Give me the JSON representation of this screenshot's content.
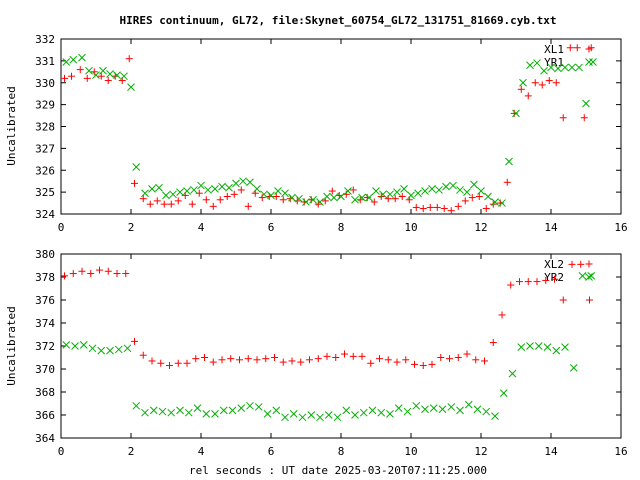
{
  "figure": {
    "title": "HIRES continuum, GL72, file:Skynet_60754_GL72_131751_81669.cyb.txt",
    "xlabel": "rel seconds : UT date 2025-03-20T07:11:25.000"
  },
  "chart_data": [
    {
      "type": "scatter",
      "ylabel": "Uncalibrated",
      "xlim": [
        0,
        16
      ],
      "ylim": [
        324,
        332
      ],
      "xticks": [
        0,
        2,
        4,
        6,
        8,
        10,
        12,
        14,
        16
      ],
      "yticks": [
        324,
        325,
        326,
        327,
        328,
        329,
        330,
        331,
        332
      ],
      "legend": "top-right",
      "series": [
        {
          "name": "XL1",
          "marker": "plus",
          "color": "#ff0000",
          "x": [
            0.1,
            0.3,
            0.55,
            0.75,
            0.95,
            1.15,
            1.35,
            1.55,
            1.75,
            1.95,
            2.1,
            2.35,
            2.55,
            2.75,
            2.95,
            3.15,
            3.35,
            3.55,
            3.75,
            3.95,
            4.15,
            4.35,
            4.55,
            4.75,
            4.95,
            5.15,
            5.35,
            5.55,
            5.75,
            5.95,
            6.15,
            6.35,
            6.55,
            6.75,
            6.95,
            7.15,
            7.35,
            7.55,
            7.75,
            7.95,
            8.15,
            8.35,
            8.55,
            8.75,
            8.95,
            9.15,
            9.35,
            9.55,
            9.75,
            9.95,
            10.15,
            10.35,
            10.55,
            10.75,
            10.95,
            11.15,
            11.35,
            11.55,
            11.75,
            11.95,
            12.15,
            12.35,
            12.55,
            12.75,
            12.95,
            13.15,
            13.35,
            13.55,
            13.75,
            13.95,
            14.15,
            14.35,
            14.55,
            14.75,
            14.95,
            15.15
          ],
          "y": [
            330.2,
            330.3,
            330.6,
            330.2,
            330.5,
            330.3,
            330.1,
            330.3,
            330.1,
            331.1,
            325.4,
            324.7,
            324.45,
            324.6,
            324.45,
            324.45,
            324.6,
            324.85,
            324.45,
            324.95,
            324.65,
            324.35,
            324.65,
            324.8,
            324.9,
            325.1,
            324.35,
            324.95,
            324.75,
            324.8,
            324.8,
            324.65,
            324.7,
            324.6,
            324.55,
            324.65,
            324.45,
            324.6,
            325.05,
            324.85,
            324.9,
            325.1,
            324.65,
            324.75,
            324.55,
            324.8,
            324.7,
            324.7,
            324.8,
            324.65,
            324.3,
            324.25,
            324.3,
            324.3,
            324.25,
            324.15,
            324.35,
            324.6,
            324.75,
            324.8,
            324.25,
            324.45,
            324.5,
            325.45,
            328.6,
            329.7,
            329.4,
            330.0,
            329.9,
            330.1,
            330.0,
            328.4,
            331.6,
            331.6,
            328.4,
            331.6
          ]
        },
        {
          "name": "YR1",
          "marker": "cross",
          "color": "#00b000",
          "x": [
            0.15,
            0.35,
            0.6,
            0.8,
            1.0,
            1.2,
            1.4,
            1.6,
            1.8,
            2.0,
            2.15,
            2.4,
            2.6,
            2.8,
            3.0,
            3.2,
            3.4,
            3.6,
            3.8,
            4.0,
            4.2,
            4.4,
            4.6,
            4.8,
            5.0,
            5.2,
            5.4,
            5.6,
            5.8,
            6.0,
            6.2,
            6.4,
            6.6,
            6.8,
            7.0,
            7.2,
            7.4,
            7.6,
            7.8,
            8.0,
            8.2,
            8.4,
            8.6,
            8.8,
            9.0,
            9.2,
            9.4,
            9.6,
            9.8,
            10.0,
            10.2,
            10.4,
            10.6,
            10.8,
            11.0,
            11.2,
            11.4,
            11.6,
            11.8,
            12.0,
            12.2,
            12.4,
            12.6,
            12.8,
            13.0,
            13.2,
            13.4,
            13.6,
            13.8,
            14.0,
            14.2,
            14.4,
            14.6,
            14.8,
            15.0,
            15.2
          ],
          "y": [
            330.95,
            331.05,
            331.15,
            330.55,
            330.35,
            330.55,
            330.4,
            330.35,
            330.3,
            329.8,
            326.15,
            324.95,
            325.15,
            325.2,
            324.85,
            324.9,
            325.0,
            325.05,
            325.1,
            325.3,
            325.1,
            325.15,
            325.25,
            325.2,
            325.4,
            325.5,
            325.45,
            325.15,
            324.9,
            324.85,
            325.05,
            324.95,
            324.75,
            324.7,
            324.55,
            324.65,
            324.55,
            324.8,
            324.75,
            324.8,
            325.05,
            324.65,
            324.75,
            324.75,
            325.05,
            324.9,
            324.9,
            325.0,
            325.15,
            324.85,
            324.95,
            325.05,
            325.15,
            325.1,
            325.25,
            325.3,
            325.1,
            325.0,
            325.35,
            325.05,
            324.8,
            324.55,
            324.5,
            326.4,
            328.6,
            330.0,
            330.8,
            330.9,
            330.55,
            330.7,
            330.65,
            330.7,
            330.7,
            330.7,
            329.05,
            330.95
          ]
        }
      ]
    },
    {
      "type": "scatter",
      "ylabel": "Uncalibrated",
      "xlim": [
        0,
        16
      ],
      "ylim": [
        364,
        380
      ],
      "xticks": [
        0,
        2,
        4,
        6,
        8,
        10,
        12,
        14,
        16
      ],
      "yticks": [
        364,
        366,
        368,
        370,
        372,
        374,
        376,
        378,
        380
      ],
      "legend": "top-right",
      "series": [
        {
          "name": "XL2",
          "marker": "plus",
          "color": "#ff0000",
          "x": [
            0.1,
            0.35,
            0.6,
            0.85,
            1.1,
            1.35,
            1.6,
            1.85,
            2.1,
            2.35,
            2.6,
            2.85,
            3.1,
            3.35,
            3.6,
            3.85,
            4.1,
            4.35,
            4.6,
            4.85,
            5.1,
            5.35,
            5.6,
            5.85,
            6.1,
            6.35,
            6.6,
            6.85,
            7.1,
            7.35,
            7.6,
            7.85,
            8.1,
            8.35,
            8.6,
            8.85,
            9.1,
            9.35,
            9.6,
            9.85,
            10.1,
            10.35,
            10.6,
            10.85,
            11.1,
            11.35,
            11.6,
            11.85,
            12.1,
            12.35,
            12.6,
            12.85,
            13.1,
            13.35,
            13.6,
            13.85,
            14.1,
            14.35,
            14.6,
            14.85,
            15.1
          ],
          "y": [
            378.1,
            378.3,
            378.5,
            378.3,
            378.6,
            378.5,
            378.3,
            378.3,
            372.4,
            371.2,
            370.7,
            370.5,
            370.3,
            370.5,
            370.5,
            370.9,
            371.0,
            370.6,
            370.8,
            370.9,
            370.8,
            370.9,
            370.8,
            370.9,
            371.0,
            370.6,
            370.7,
            370.6,
            370.8,
            370.9,
            371.1,
            371.0,
            371.3,
            371.1,
            371.1,
            370.5,
            370.9,
            370.8,
            370.6,
            370.8,
            370.4,
            370.3,
            370.4,
            371.0,
            370.9,
            371.0,
            371.3,
            370.8,
            370.7,
            372.3,
            374.7,
            377.3,
            377.6,
            377.6,
            377.6,
            377.7,
            377.8,
            376.0,
            379.1,
            379.1,
            376.0
          ]
        },
        {
          "name": "YR2",
          "marker": "cross",
          "color": "#00b000",
          "x": [
            0.15,
            0.4,
            0.65,
            0.9,
            1.15,
            1.4,
            1.65,
            1.9,
            2.15,
            2.4,
            2.65,
            2.9,
            3.15,
            3.4,
            3.65,
            3.9,
            4.15,
            4.4,
            4.65,
            4.9,
            5.15,
            5.4,
            5.65,
            5.9,
            6.15,
            6.4,
            6.65,
            6.9,
            7.15,
            7.4,
            7.65,
            7.9,
            8.15,
            8.4,
            8.65,
            8.9,
            9.15,
            9.4,
            9.65,
            9.9,
            10.15,
            10.4,
            10.65,
            10.9,
            11.15,
            11.4,
            11.65,
            11.9,
            12.15,
            12.4,
            12.65,
            12.9,
            13.15,
            13.4,
            13.65,
            13.9,
            14.15,
            14.4,
            14.65,
            14.9,
            15.15
          ],
          "y": [
            372.1,
            372.0,
            372.1,
            371.8,
            371.6,
            371.6,
            371.7,
            371.8,
            366.8,
            366.2,
            366.4,
            366.3,
            366.2,
            366.4,
            366.2,
            366.6,
            366.1,
            366.1,
            366.4,
            366.4,
            366.6,
            366.8,
            366.7,
            366.1,
            366.4,
            365.8,
            366.1,
            365.8,
            366.0,
            365.8,
            366.0,
            365.8,
            366.4,
            366.0,
            366.2,
            366.4,
            366.2,
            366.1,
            366.6,
            366.3,
            366.8,
            366.5,
            366.6,
            366.5,
            366.7,
            366.4,
            366.9,
            366.5,
            366.3,
            365.9,
            367.9,
            369.6,
            371.9,
            372.0,
            372.0,
            371.9,
            371.6,
            371.9,
            370.1,
            378.1,
            378.1
          ]
        }
      ]
    }
  ]
}
